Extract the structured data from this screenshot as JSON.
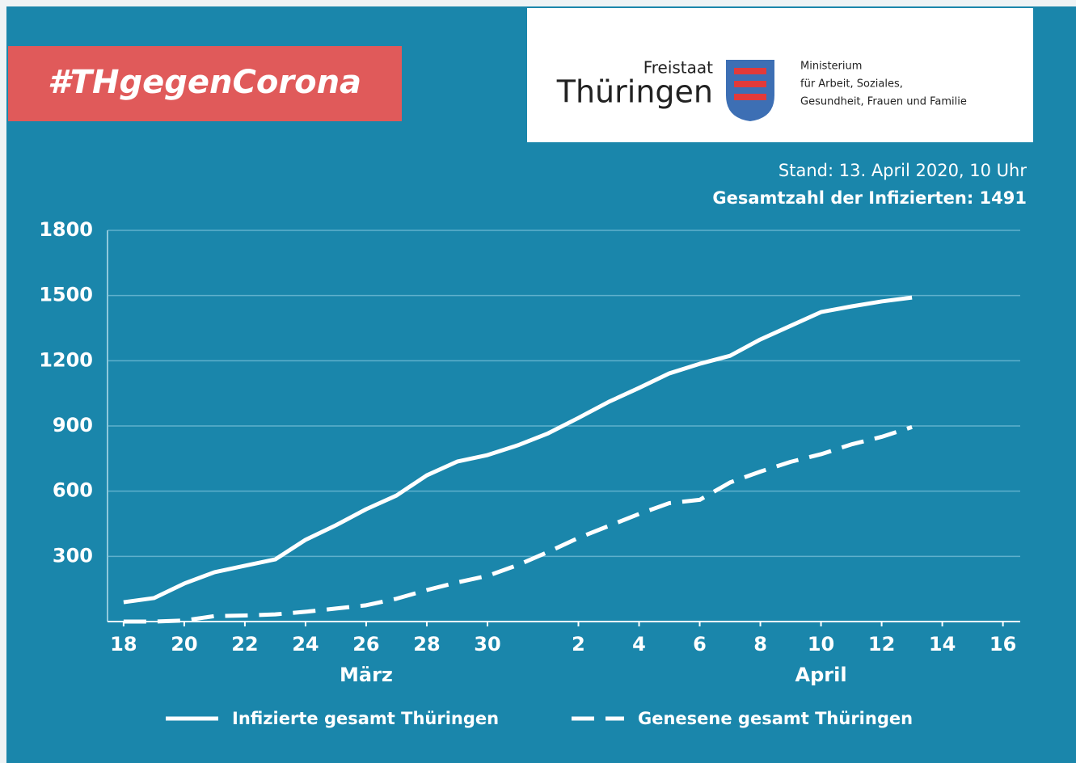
{
  "badge": "#THgegenCorona",
  "logo": {
    "line1": "Freistaat",
    "line2": "Thüringen",
    "ministry": [
      "Ministerium",
      "für Arbeit, Soziales,",
      "Gesundheit, Frauen und Familie"
    ]
  },
  "chart_data": {
    "type": "line",
    "subtitle": "Stand: 13. April 2020, 10 Uhr",
    "annotation": "Gesamtzahl der Infizierten: 1491",
    "month_labels": [
      {
        "value": 26,
        "label": "März"
      },
      {
        "value": 41,
        "label": "April"
      }
    ],
    "x": [
      18,
      19,
      20,
      21,
      22,
      23,
      24,
      25,
      26,
      27,
      28,
      29,
      30,
      31,
      32,
      33,
      34,
      35,
      36,
      37,
      38,
      39,
      40,
      41,
      42,
      43,
      44
    ],
    "series": [
      {
        "name": "Infizierte gesamt Thüringen",
        "color": "#ffffff",
        "dash": "solid",
        "values": [
          89,
          108,
          175,
          227,
          257,
          286,
          376,
          443,
          517,
          580,
          673,
          736,
          766,
          811,
          866,
          937,
          1011,
          1075,
          1142,
          1186,
          1223,
          1298,
          1361,
          1424,
          1450,
          1473,
          1491
        ]
      },
      {
        "name": "Genesene gesamt Thüringen",
        "color": "#ffffff",
        "dash": "dashed",
        "values": [
          0,
          0,
          5,
          25,
          28,
          33,
          45,
          60,
          75,
          105,
          145,
          180,
          210,
          260,
          320,
          385,
          440,
          495,
          545,
          560,
          640,
          690,
          735,
          770,
          815,
          850,
          895
        ]
      }
    ],
    "xlim": [
      17.47,
      47.57
    ],
    "xticks": [
      {
        "value": 18,
        "label": "18"
      },
      {
        "value": 20,
        "label": "20"
      },
      {
        "value": 22,
        "label": "22"
      },
      {
        "value": 24,
        "label": "24"
      },
      {
        "value": 26,
        "label": "26"
      },
      {
        "value": 28,
        "label": "28"
      },
      {
        "value": 30,
        "label": "30"
      },
      {
        "value": 33,
        "label": "2"
      },
      {
        "value": 35,
        "label": "4"
      },
      {
        "value": 37,
        "label": "6"
      },
      {
        "value": 39,
        "label": "8"
      },
      {
        "value": 41,
        "label": "10"
      },
      {
        "value": 43,
        "label": "12"
      },
      {
        "value": 45,
        "label": "14"
      },
      {
        "value": 47,
        "label": "16"
      }
    ],
    "ylim": [
      0,
      1800
    ],
    "yticks": [
      300,
      600,
      900,
      1200,
      1500,
      1800
    ],
    "grid": true
  }
}
